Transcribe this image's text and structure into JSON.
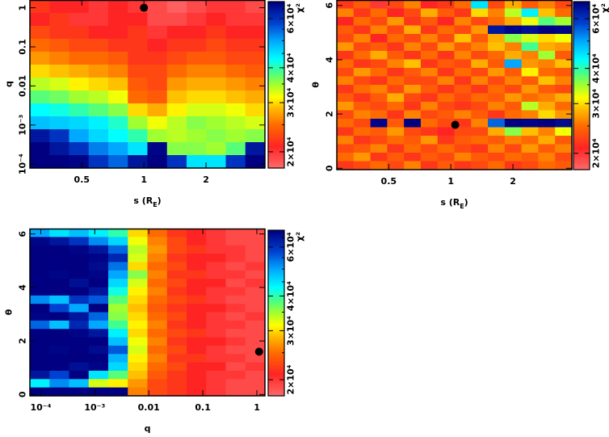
{
  "colorbar": {
    "label": "χ²",
    "range": [
      1.75,
      6.9
    ],
    "unit_multiplier": 10000,
    "ticks": [
      {
        "value": 2,
        "label": "2×10⁴"
      },
      {
        "value": 3,
        "label": "3×10⁴"
      },
      {
        "value": 4,
        "label": "4×10⁴"
      },
      {
        "value": 6,
        "label": "6×10⁴"
      }
    ],
    "stops": [
      [
        1.75,
        "#ff6a6a"
      ],
      [
        2.1,
        "#ff2424"
      ],
      [
        2.5,
        "#ff6a00"
      ],
      [
        2.9,
        "#ffc000"
      ],
      [
        3.15,
        "#ffff00"
      ],
      [
        3.5,
        "#a0ff30"
      ],
      [
        3.9,
        "#40ff90"
      ],
      [
        4.3,
        "#00ffff"
      ],
      [
        5.0,
        "#00a8ff"
      ],
      [
        5.8,
        "#0040d0"
      ],
      [
        6.9,
        "#000080"
      ]
    ]
  },
  "chart_data": [
    {
      "type": "heatmap",
      "title": "",
      "xlabel": "s (R",
      "xlabel_sub": "E",
      "xlabel_close": ")",
      "ylabel": "q",
      "xscale": "log",
      "yscale": "log",
      "xlim": [
        0.28,
        3.86
      ],
      "ylim": [
        7.94e-05,
        1.58
      ],
      "xticks": [
        {
          "value": 0.5,
          "label": "0.5"
        },
        {
          "value": 1,
          "label": "1"
        },
        {
          "value": 2,
          "label": "2"
        }
      ],
      "yticks": [
        {
          "value": 1,
          "label": "1"
        },
        {
          "value": 0.1,
          "label": "0.1"
        },
        {
          "value": 0.01,
          "label": "0.01"
        },
        {
          "value": 0.001,
          "label": "10⁻³"
        },
        {
          "value": 0.0001,
          "label": "10⁻⁴"
        }
      ],
      "z_note": "chi-square in units of 1e4; rows top (high y) to bottom",
      "z": [
        [
          2.2,
          2.1,
          2.1,
          2.0,
          2.1,
          2.0,
          1.9,
          1.8,
          1.9,
          2.0,
          2.0,
          1.9
        ],
        [
          2.1,
          2.2,
          2.0,
          2.0,
          2.1,
          2.1,
          1.9,
          1.9,
          2.0,
          2.1,
          2.0,
          2.0
        ],
        [
          2.3,
          2.2,
          2.2,
          2.1,
          2.1,
          2.2,
          2.0,
          2.1,
          2.1,
          2.2,
          2.1,
          2.1
        ],
        [
          2.5,
          2.4,
          2.3,
          2.3,
          2.2,
          2.2,
          2.1,
          2.2,
          2.2,
          2.3,
          2.2,
          2.2
        ],
        [
          2.7,
          2.6,
          2.5,
          2.5,
          2.4,
          2.2,
          2.2,
          2.3,
          2.4,
          2.4,
          2.3,
          2.3
        ],
        [
          3.0,
          2.9,
          2.8,
          2.7,
          2.6,
          2.3,
          2.3,
          2.5,
          2.6,
          2.6,
          2.5,
          2.4
        ],
        [
          3.4,
          3.3,
          3.1,
          3.0,
          2.9,
          2.4,
          2.3,
          2.7,
          2.8,
          2.8,
          2.7,
          2.6
        ],
        [
          3.8,
          3.7,
          3.5,
          3.4,
          3.2,
          2.5,
          2.4,
          2.9,
          3.0,
          3.0,
          2.9,
          2.8
        ],
        [
          4.3,
          4.2,
          4.0,
          3.8,
          3.6,
          3.0,
          2.8,
          3.1,
          3.3,
          3.3,
          3.2,
          3.0
        ],
        [
          4.8,
          4.7,
          4.6,
          4.4,
          4.1,
          3.5,
          3.2,
          3.4,
          3.6,
          3.5,
          3.4,
          3.3
        ],
        [
          6.5,
          6.0,
          5.0,
          4.6,
          4.3,
          4.0,
          3.5,
          3.4,
          3.5,
          3.6,
          3.5,
          3.6
        ],
        [
          6.9,
          6.5,
          6.0,
          5.3,
          5.0,
          4.5,
          6.8,
          3.6,
          3.6,
          3.5,
          3.8,
          6.5
        ],
        [
          6.9,
          6.9,
          6.8,
          6.0,
          5.5,
          6.5,
          6.9,
          6.0,
          4.5,
          4.5,
          6.0,
          6.9
        ]
      ],
      "best_fit": {
        "x": 1.0,
        "y": 1.0
      }
    },
    {
      "type": "heatmap",
      "title": "",
      "xlabel": "s (R",
      "xlabel_sub": "E",
      "xlabel_close": ")",
      "ylabel": "θ",
      "xscale": "log",
      "yscale": "linear",
      "xlim": [
        0.28,
        3.86
      ],
      "ylim": [
        -0.05,
        6.2
      ],
      "xticks": [
        {
          "value": 0.5,
          "label": "0.5"
        },
        {
          "value": 1,
          "label": "1"
        },
        {
          "value": 2,
          "label": "2"
        }
      ],
      "yticks": [
        {
          "value": 0,
          "label": "0"
        },
        {
          "value": 2,
          "label": "2"
        },
        {
          "value": 4,
          "label": "4"
        },
        {
          "value": 6,
          "label": "6"
        }
      ],
      "z_note": "chi-square in units of 1e4; rows top (high y) to bottom",
      "z": [
        [
          2.2,
          2.4,
          2.0,
          2.3,
          2.6,
          2.1,
          2.2,
          2.5,
          4.5,
          2.3,
          2.8,
          2.4,
          2.6,
          2.3
        ],
        [
          2.6,
          2.2,
          2.5,
          2.1,
          2.3,
          2.8,
          2.4,
          2.2,
          3.0,
          2.6,
          3.4,
          4.4,
          2.9,
          2.5
        ],
        [
          2.1,
          2.5,
          2.3,
          2.7,
          2.2,
          2.4,
          2.1,
          2.6,
          2.3,
          2.5,
          2.8,
          3.2,
          3.8,
          3.5
        ],
        [
          2.4,
          2.2,
          2.6,
          2.3,
          2.8,
          2.2,
          2.5,
          2.3,
          2.7,
          6.5,
          6.8,
          6.6,
          6.9,
          6.8
        ],
        [
          2.3,
          2.6,
          2.1,
          2.5,
          2.3,
          2.6,
          2.3,
          2.9,
          2.4,
          2.8,
          3.6,
          3.3,
          3.0,
          3.2
        ],
        [
          2.7,
          2.3,
          2.4,
          2.2,
          2.6,
          2.3,
          2.7,
          2.4,
          2.6,
          2.9,
          2.6,
          3.9,
          2.8,
          2.7
        ],
        [
          2.2,
          2.5,
          2.8,
          2.4,
          2.2,
          2.5,
          2.2,
          2.6,
          2.3,
          2.5,
          2.8,
          2.6,
          3.5,
          2.4
        ],
        [
          2.5,
          2.2,
          2.3,
          2.6,
          2.9,
          2.2,
          2.4,
          2.3,
          2.8,
          2.4,
          5.0,
          2.7,
          2.6,
          2.9
        ],
        [
          2.3,
          2.7,
          2.5,
          2.2,
          2.4,
          2.6,
          2.2,
          2.5,
          2.3,
          2.7,
          2.4,
          3.1,
          2.5,
          2.4
        ],
        [
          2.6,
          2.3,
          2.2,
          2.5,
          2.3,
          2.3,
          2.6,
          2.2,
          2.6,
          2.3,
          2.6,
          2.4,
          2.9,
          2.6
        ],
        [
          2.2,
          2.5,
          2.6,
          2.3,
          2.7,
          2.4,
          2.2,
          2.4,
          2.2,
          2.5,
          2.3,
          2.7,
          2.4,
          2.3
        ],
        [
          2.4,
          2.2,
          2.4,
          2.8,
          2.3,
          2.2,
          2.5,
          2.3,
          2.5,
          2.4,
          2.7,
          2.5,
          2.6,
          2.8
        ],
        [
          2.7,
          2.4,
          2.3,
          2.5,
          2.2,
          2.6,
          2.3,
          2.2,
          2.3,
          2.6,
          2.4,
          3.4,
          2.8,
          2.5
        ],
        [
          2.3,
          2.6,
          2.5,
          2.2,
          2.6,
          2.3,
          2.4,
          2.6,
          2.4,
          2.2,
          2.5,
          2.6,
          3.0,
          2.7
        ],
        [
          2.5,
          2.3,
          6.8,
          2.4,
          6.9,
          2.5,
          2.3,
          2.2,
          2.6,
          5.5,
          6.9,
          6.8,
          6.9,
          6.7
        ],
        [
          2.2,
          2.5,
          2.4,
          2.7,
          2.3,
          2.2,
          2.1,
          2.3,
          2.3,
          2.8,
          3.6,
          2.9,
          2.6,
          3.2
        ],
        [
          2.6,
          2.2,
          2.3,
          2.5,
          2.4,
          2.7,
          2.2,
          2.4,
          2.5,
          2.4,
          2.6,
          2.5,
          2.8,
          2.4
        ],
        [
          2.3,
          2.4,
          2.6,
          2.2,
          2.5,
          2.3,
          2.5,
          2.3,
          2.2,
          2.6,
          2.3,
          2.7,
          2.4,
          2.6
        ],
        [
          2.5,
          2.7,
          2.2,
          2.4,
          2.2,
          2.4,
          2.3,
          2.6,
          2.4,
          2.3,
          2.5,
          2.4,
          2.6,
          2.3
        ],
        [
          2.2,
          2.3,
          2.5,
          2.3,
          2.6,
          2.2,
          2.4,
          2.2,
          2.3,
          2.5,
          2.2,
          2.3,
          2.5,
          2.4
        ]
      ],
      "best_fit": {
        "x": 1.05,
        "y": 1.6
      }
    },
    {
      "type": "heatmap",
      "title": "",
      "xlabel": "q",
      "ylabel": "θ",
      "xscale": "log",
      "yscale": "linear",
      "xlim": [
        6.3e-05,
        1.41
      ],
      "ylim": [
        -0.05,
        6.2
      ],
      "xticks": [
        {
          "value": 0.0001,
          "label": "10⁻⁴"
        },
        {
          "value": 0.001,
          "label": "10⁻³"
        },
        {
          "value": 0.01,
          "label": "0.01"
        },
        {
          "value": 0.1,
          "label": "0.1"
        },
        {
          "value": 1,
          "label": "1"
        }
      ],
      "yticks": [
        {
          "value": 0,
          "label": "0"
        },
        {
          "value": 2,
          "label": "2"
        },
        {
          "value": 4,
          "label": "4"
        },
        {
          "value": 6,
          "label": "6"
        }
      ],
      "z_note": "chi-square in units of 1e4; rows top (high y) to bottom",
      "z": [
        [
          5.0,
          4.5,
          4.8,
          4.4,
          4.0,
          3.0,
          2.5,
          2.2,
          2.1,
          2.0,
          1.9,
          1.9
        ],
        [
          6.8,
          6.5,
          6.0,
          5.2,
          4.6,
          3.2,
          2.6,
          2.3,
          2.1,
          2.0,
          1.9,
          1.9
        ],
        [
          6.9,
          6.9,
          6.8,
          6.5,
          5.5,
          3.4,
          2.7,
          2.3,
          2.2,
          2.0,
          2.0,
          1.9
        ],
        [
          6.9,
          6.9,
          6.9,
          6.8,
          6.2,
          3.3,
          2.6,
          2.2,
          2.1,
          2.1,
          2.0,
          1.9
        ],
        [
          6.9,
          6.9,
          6.9,
          6.7,
          5.4,
          3.0,
          2.5,
          2.3,
          2.1,
          2.0,
          1.9,
          2.0
        ],
        [
          6.9,
          6.8,
          6.9,
          6.8,
          5.0,
          3.6,
          2.6,
          2.2,
          2.2,
          2.0,
          2.0,
          1.9
        ],
        [
          6.9,
          6.9,
          6.6,
          6.9,
          4.6,
          3.3,
          2.5,
          2.3,
          2.1,
          2.1,
          1.9,
          2.0
        ],
        [
          6.9,
          6.9,
          6.9,
          6.5,
          4.2,
          3.1,
          2.6,
          2.2,
          2.1,
          2.0,
          2.0,
          1.9
        ],
        [
          5.2,
          4.8,
          6.0,
          5.6,
          3.8,
          3.0,
          2.5,
          2.3,
          2.2,
          2.0,
          1.9,
          1.9
        ],
        [
          6.9,
          5.8,
          5.0,
          6.9,
          3.5,
          2.9,
          2.4,
          2.2,
          2.1,
          2.1,
          2.0,
          1.9
        ],
        [
          6.8,
          6.9,
          6.5,
          5.5,
          3.6,
          3.0,
          2.5,
          2.3,
          2.1,
          2.0,
          1.9,
          2.0
        ],
        [
          5.5,
          4.8,
          6.2,
          5.0,
          3.9,
          3.1,
          2.6,
          2.2,
          2.1,
          2.0,
          2.0,
          1.9
        ],
        [
          6.9,
          6.9,
          6.8,
          6.5,
          4.4,
          3.0,
          2.5,
          2.3,
          2.2,
          2.0,
          1.9,
          1.9
        ],
        [
          6.9,
          6.9,
          6.9,
          6.9,
          4.8,
          3.2,
          2.6,
          2.2,
          2.1,
          2.1,
          2.0,
          1.9
        ],
        [
          6.9,
          6.8,
          6.9,
          6.7,
          5.6,
          3.3,
          2.5,
          2.3,
          2.1,
          2.0,
          1.9,
          1.9
        ],
        [
          6.9,
          6.9,
          6.9,
          6.9,
          4.9,
          3.1,
          2.6,
          2.2,
          2.2,
          2.0,
          2.0,
          1.9
        ],
        [
          6.9,
          6.9,
          6.6,
          6.8,
          4.6,
          3.0,
          2.5,
          2.3,
          2.1,
          2.1,
          1.9,
          2.0
        ],
        [
          6.5,
          5.8,
          6.9,
          4.5,
          3.8,
          2.9,
          2.4,
          2.2,
          2.1,
          2.0,
          2.0,
          1.9
        ],
        [
          4.4,
          5.2,
          4.8,
          3.3,
          3.1,
          2.7,
          2.3,
          2.2,
          2.1,
          2.0,
          1.9,
          1.9
        ],
        [
          6.9,
          6.9,
          6.9,
          6.9,
          6.9,
          2.6,
          2.3,
          2.2,
          2.1,
          2.0,
          1.9,
          1.9
        ]
      ],
      "best_fit": {
        "x": 1.1,
        "y": 1.6
      }
    }
  ]
}
